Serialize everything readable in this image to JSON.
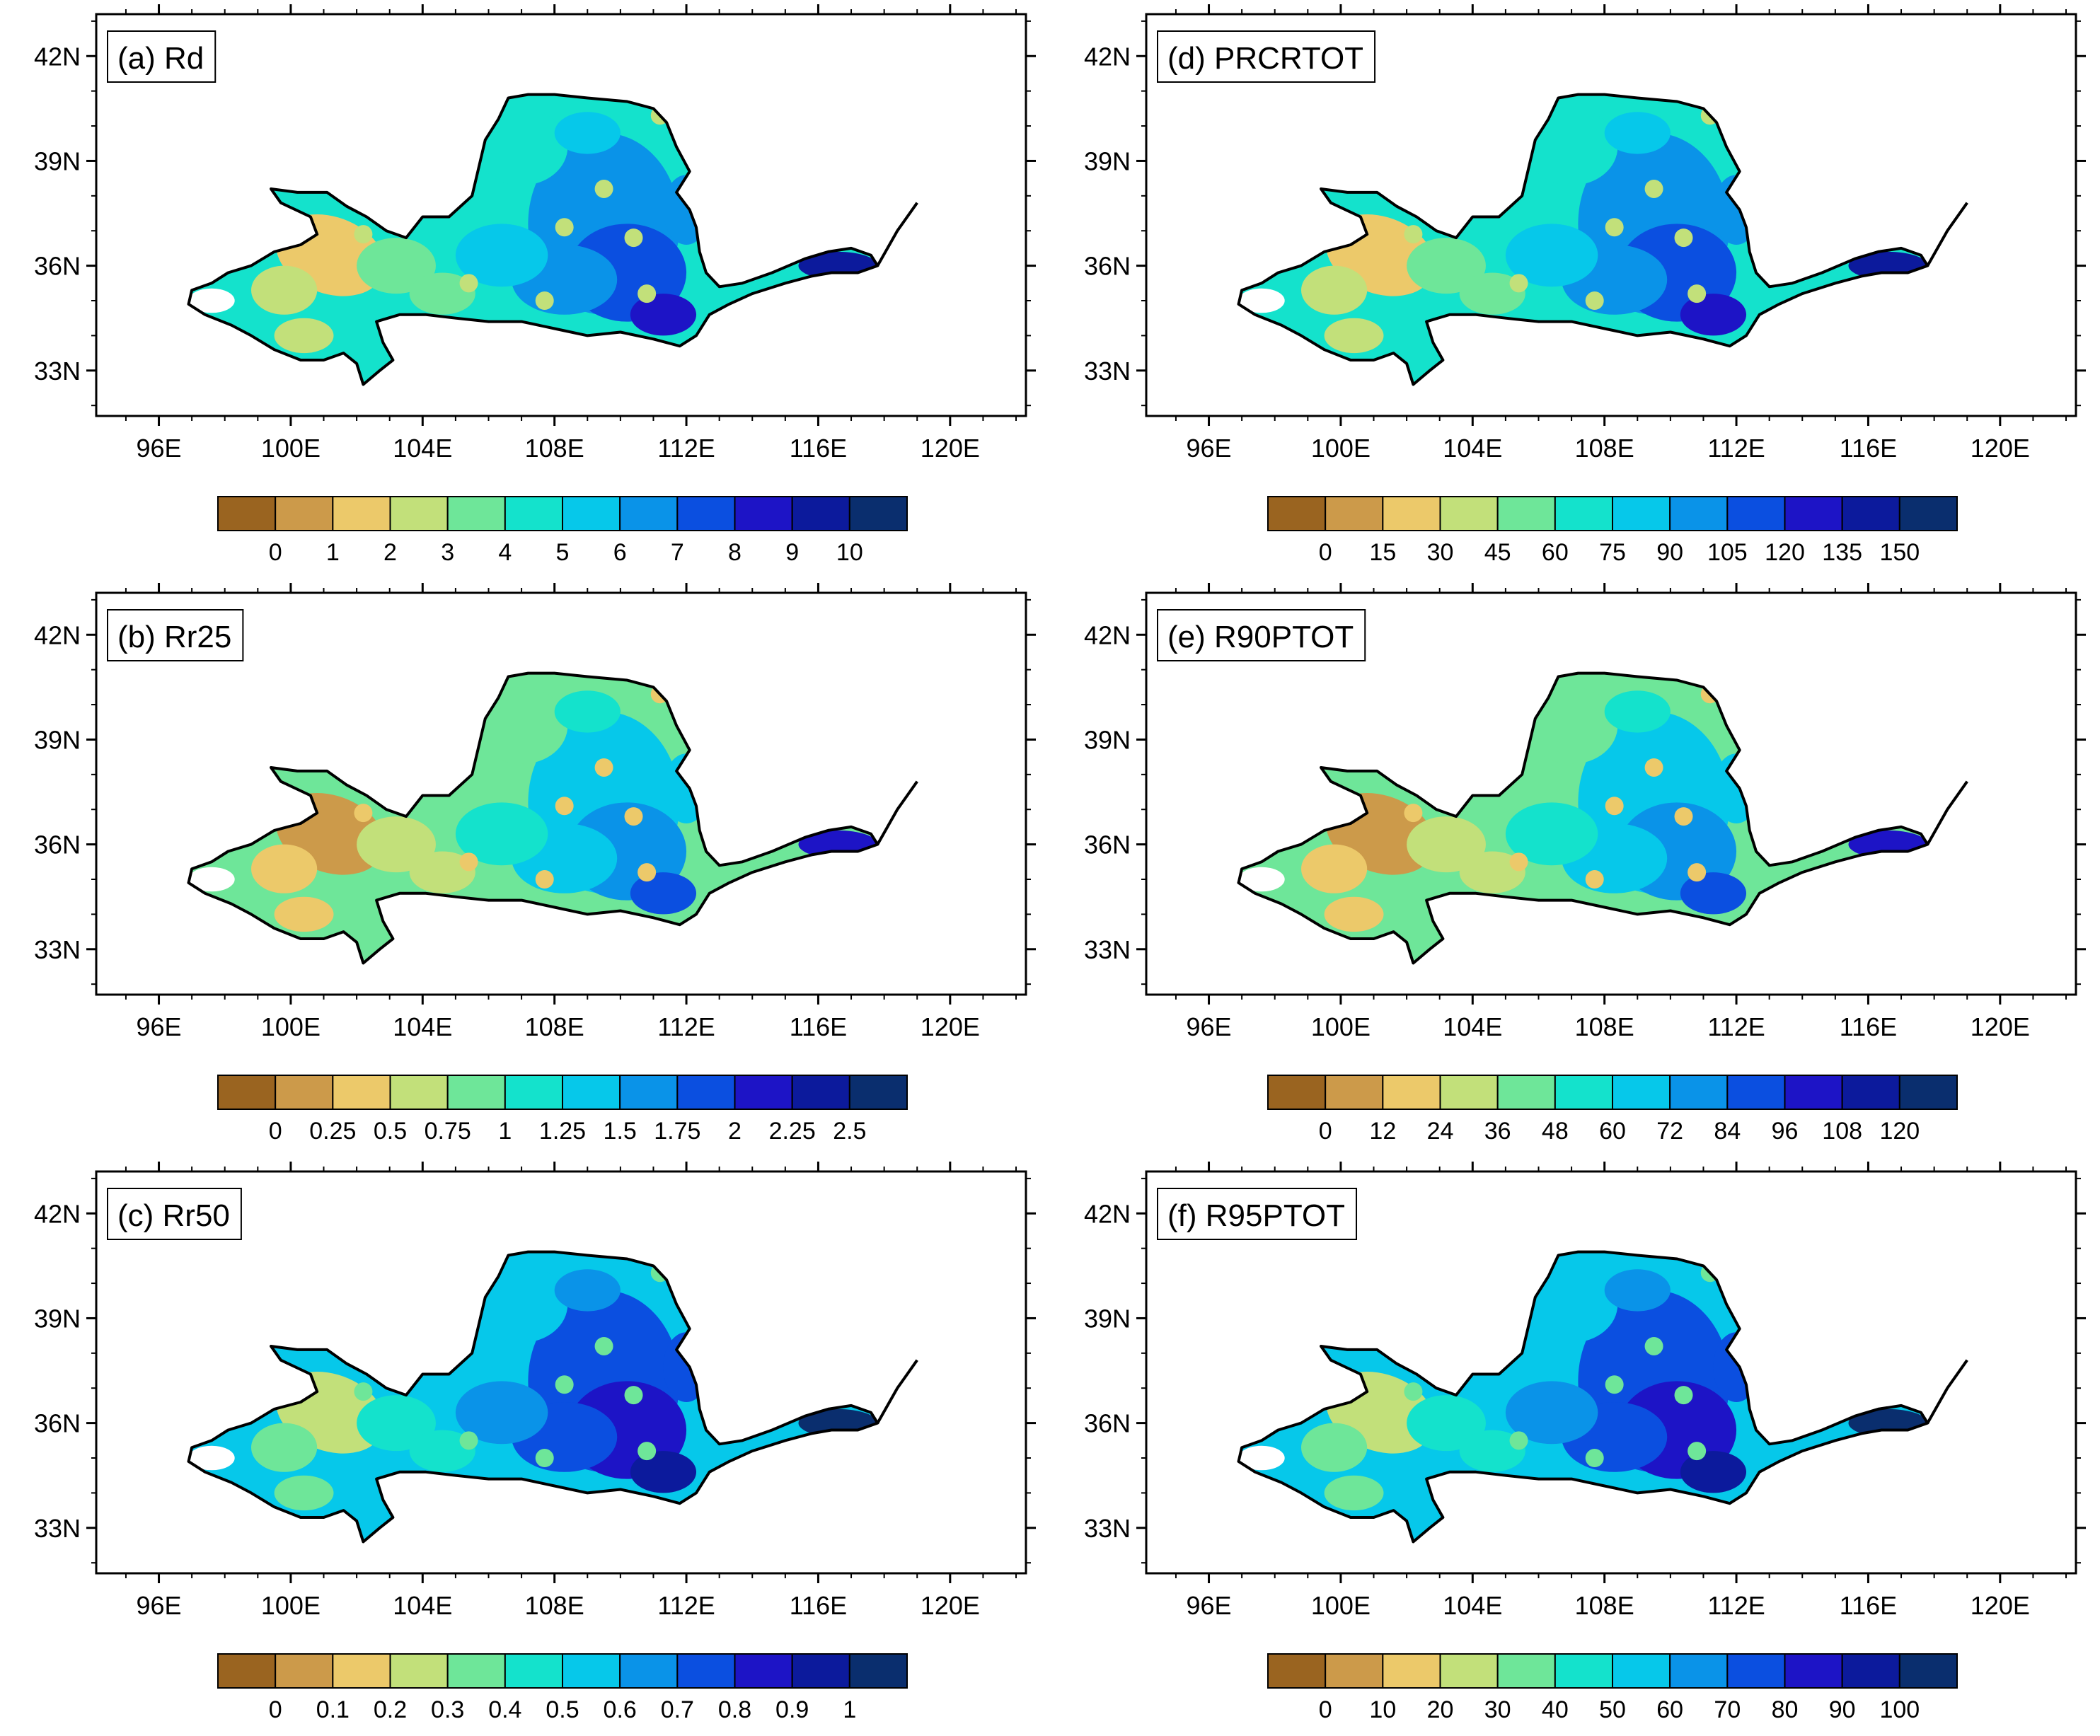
{
  "figure": {
    "description_domain": "Yellow River basin precipitation index maps",
    "lon_ticks": [
      "96E",
      "100E",
      "104E",
      "108E",
      "112E",
      "116E",
      "120E"
    ],
    "lat_ticks": [
      "42N",
      "39N",
      "36N",
      "33N"
    ],
    "palette": [
      "#9a6420",
      "#cc9a4a",
      "#ecc96a",
      "#c2e07a",
      "#6ee699",
      "#14e2cc",
      "#06c8ea",
      "#0a93e8",
      "#0b4fe0",
      "#1d14c6",
      "#0c1a9c",
      "#0a2e6e"
    ],
    "basin_fill_default": "#6ee6a8"
  },
  "panels": [
    {
      "id": "a",
      "title": "(a) Rd",
      "colorbar_labels": [
        "0",
        "1",
        "2",
        "3",
        "4",
        "5",
        "6",
        "7",
        "8",
        "9",
        "10"
      ],
      "dominant_class": 5
    },
    {
      "id": "d",
      "title": "(d) PRCRTOT",
      "colorbar_labels": [
        "0",
        "15",
        "30",
        "45",
        "60",
        "75",
        "90",
        "105",
        "120",
        "135",
        "150"
      ],
      "dominant_class": 5
    },
    {
      "id": "b",
      "title": "(b) Rr25",
      "colorbar_labels": [
        "0",
        "0.25",
        "0.5",
        "0.75",
        "1",
        "1.25",
        "1.5",
        "1.75",
        "2",
        "2.25",
        "2.5"
      ],
      "dominant_class": 4
    },
    {
      "id": "e",
      "title": "(e) R90PTOT",
      "colorbar_labels": [
        "0",
        "12",
        "24",
        "36",
        "48",
        "60",
        "72",
        "84",
        "96",
        "108",
        "120"
      ],
      "dominant_class": 4
    },
    {
      "id": "c",
      "title": "(c) Rr50",
      "colorbar_labels": [
        "0",
        "0.1",
        "0.2",
        "0.3",
        "0.4",
        "0.5",
        "0.6",
        "0.7",
        "0.8",
        "0.9",
        "1"
      ],
      "dominant_class": 6
    },
    {
      "id": "f",
      "title": "(f) R95PTOT",
      "colorbar_labels": [
        "0",
        "10",
        "20",
        "30",
        "40",
        "50",
        "60",
        "70",
        "80",
        "90",
        "100"
      ],
      "dominant_class": 6
    }
  ]
}
